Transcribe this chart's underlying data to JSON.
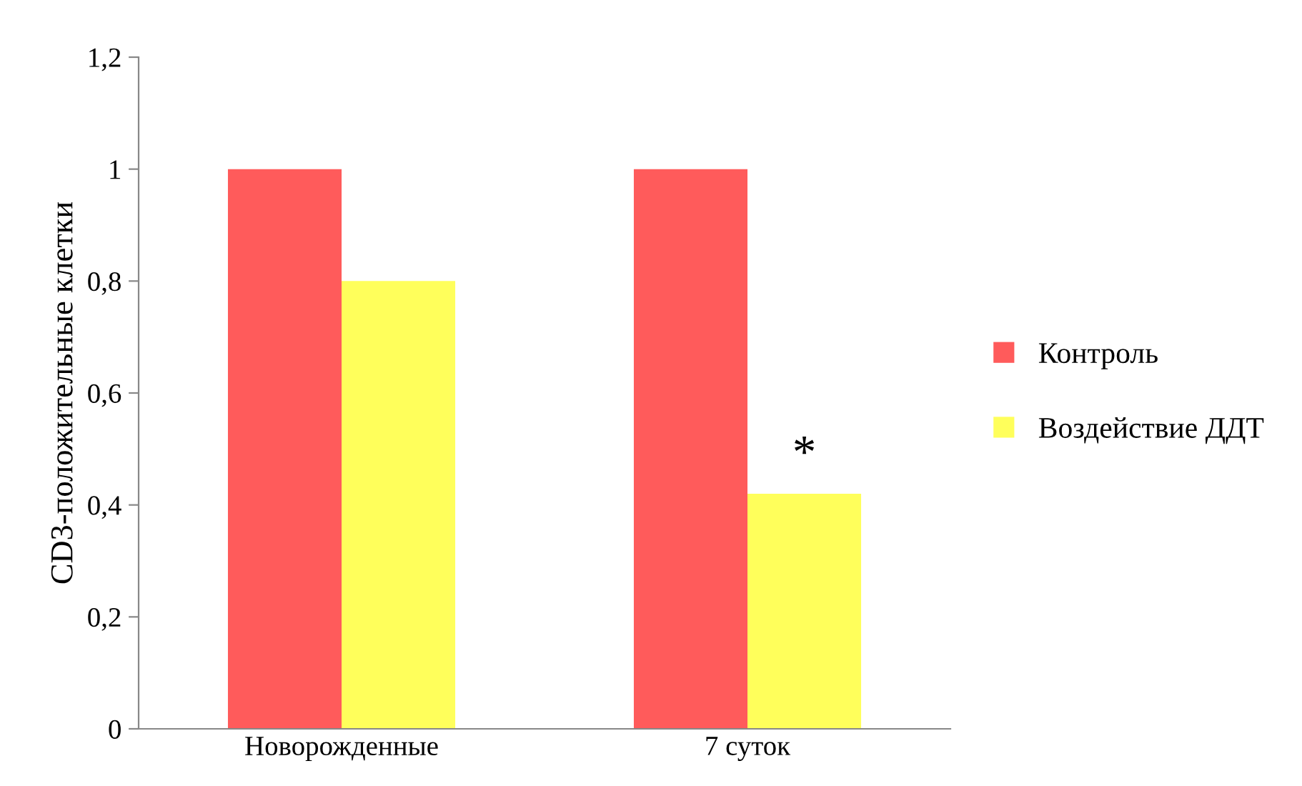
{
  "chart_data": {
    "type": "bar",
    "ylabel": "CD3-положительные клетки",
    "categories": [
      "Новорожденные",
      "7 суток"
    ],
    "series": [
      {
        "name": "Контроль",
        "color": "#ff5b5b",
        "values": [
          1.0,
          1.0
        ]
      },
      {
        "name": "Воздействие ДДТ",
        "color": "#ffff5b",
        "values": [
          0.8,
          0.42
        ]
      }
    ],
    "ylim": [
      0,
      1.2
    ],
    "yticks": [
      0,
      {
        "value": 0.2,
        "label": "0,2"
      },
      {
        "value": 0.4,
        "label": "0,4"
      },
      {
        "value": 0.6,
        "label": "0,6"
      },
      {
        "value": 0.8,
        "label": "0,8"
      },
      1,
      {
        "value": 1.2,
        "label": "1,2"
      }
    ],
    "annotations": [
      {
        "text": "*",
        "x": "7 суток",
        "y": 0.42
      }
    ],
    "grid": false,
    "legend": "right"
  }
}
